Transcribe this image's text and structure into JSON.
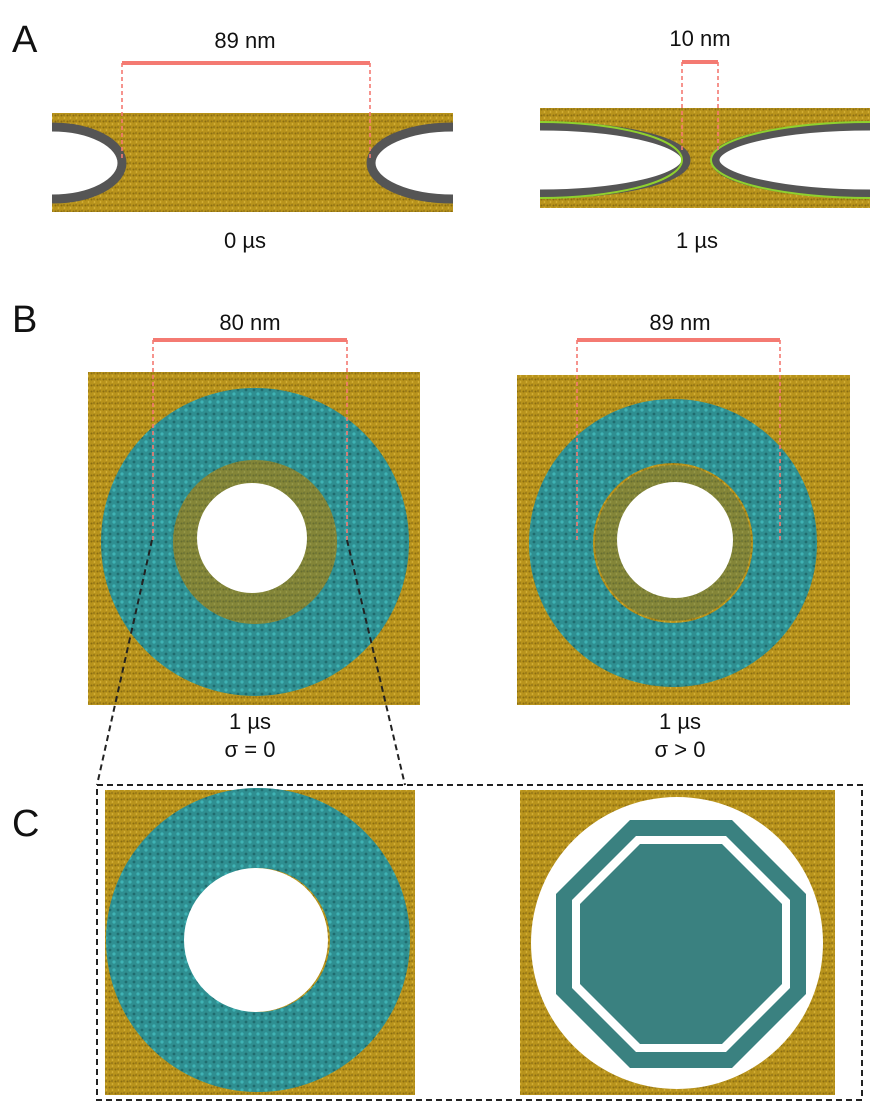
{
  "panels": [
    {
      "label": "A",
      "items": [
        {
          "scale": "89 nm",
          "time": "0 µs"
        },
        {
          "scale": "10 nm",
          "time": "1 µs"
        }
      ]
    },
    {
      "label": "B",
      "items": [
        {
          "scale": "80 nm",
          "time": "1 µs",
          "condition": "σ  = 0"
        },
        {
          "scale": "89 nm",
          "time": "1 µs",
          "condition": "σ > 0"
        }
      ]
    },
    {
      "label": "C"
    }
  ]
}
